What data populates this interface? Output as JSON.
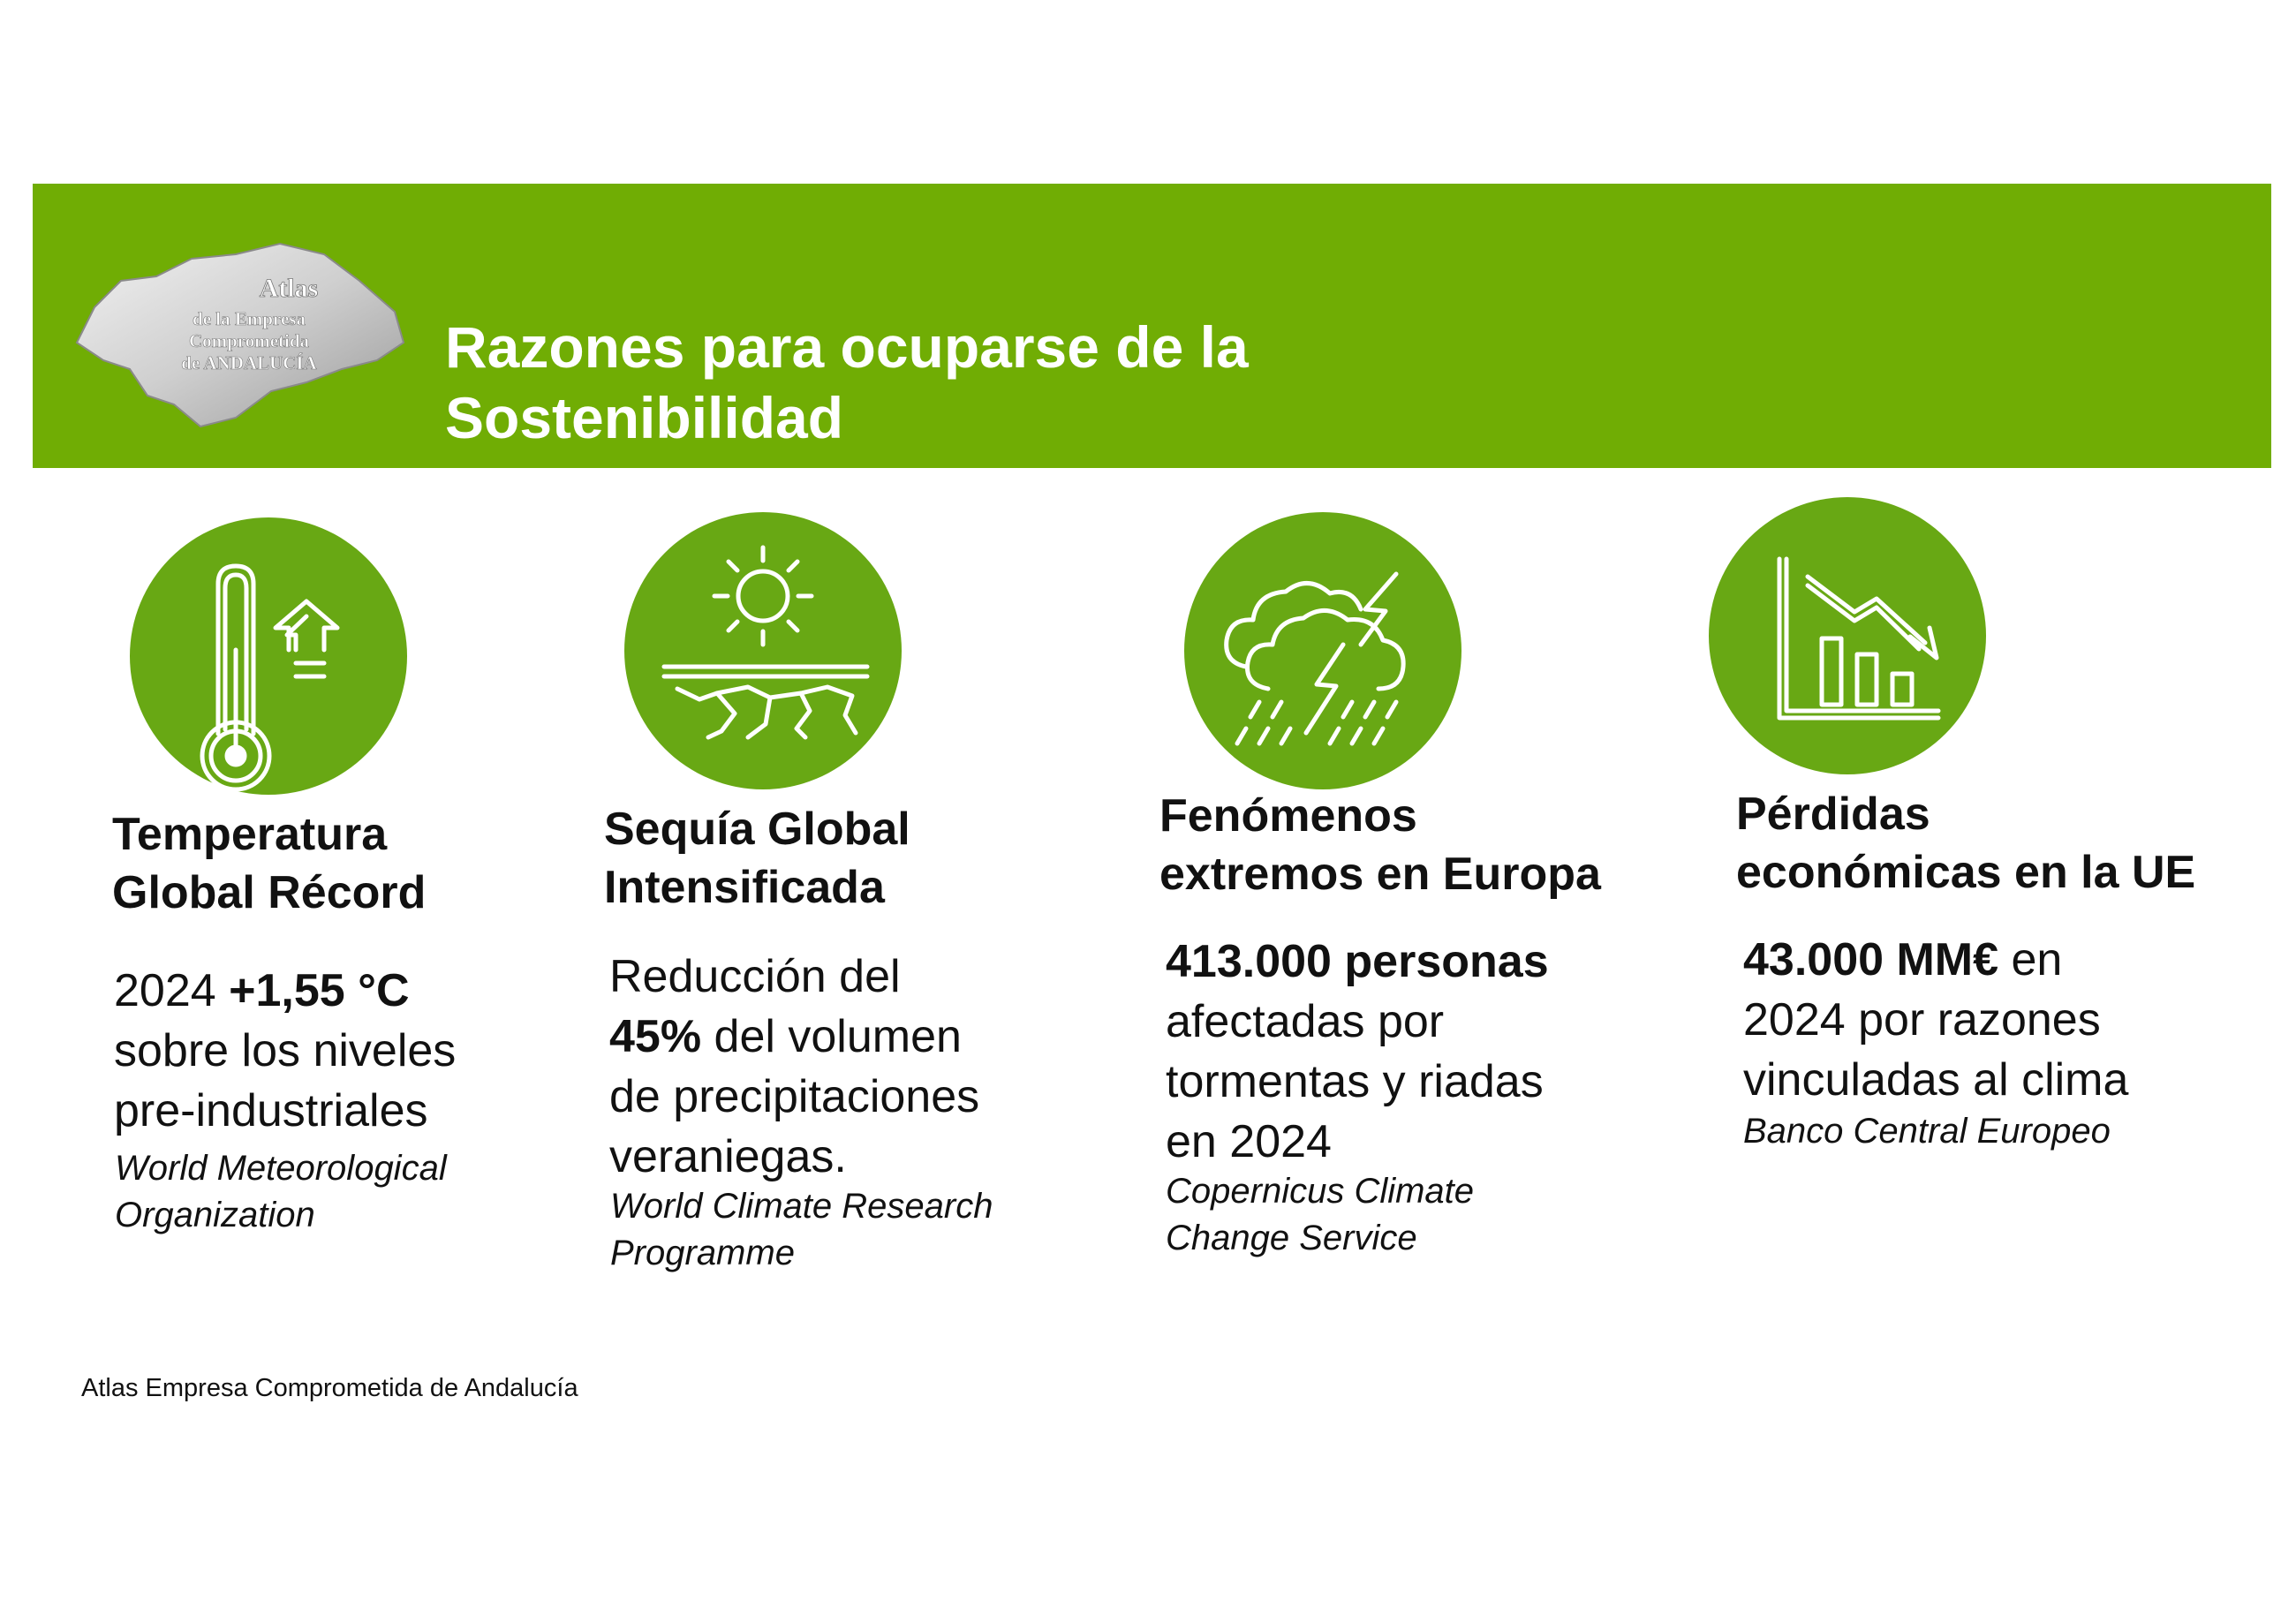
{
  "header": {
    "title_line1": "Razones para ocuparse de la",
    "title_line2": "Sostenibilidad",
    "logo": {
      "name": "andalucia-map-logo",
      "line1": "Atlas",
      "line2": "de la Empresa",
      "line3": "Comprometida",
      "line4": "de ANDALUCÍA"
    }
  },
  "colors": {
    "accent": "#70ad04",
    "circle": "#68a814",
    "text": "#111111"
  },
  "columns": [
    {
      "icon": "thermometer-rising-icon",
      "title_line1": "Temperatura",
      "title_line2": "Global Récord",
      "body": {
        "pre": "2024 ",
        "bold": "+1,55 °C",
        "line2": "sobre los niveles",
        "line3": "pre-industriales"
      },
      "source_line1": "World Meteorological",
      "source_line2": "Organization"
    },
    {
      "icon": "drought-sun-cracked-earth-icon",
      "title_line1": "Sequía Global",
      "title_line2": "Intensificada",
      "body": {
        "line1": "Reducción del",
        "bold": "45%",
        "line2_rest": " del volumen",
        "line3": "de precipitaciones",
        "line4": "veraniegas."
      },
      "source_line1": "World Climate Research",
      "source_line2": "Programme"
    },
    {
      "icon": "storm-cloud-lightning-icon",
      "title_line1": "Fenómenos",
      "title_line2": "extremos en Europa",
      "body": {
        "bold": "413.000 personas",
        "line2": "afectadas por",
        "line3": "tormentas y riadas",
        "line4": "en 2024"
      },
      "source_line1": "Copernicus Climate",
      "source_line2": "Change Service"
    },
    {
      "icon": "declining-bar-chart-icon",
      "title_line1": "Pérdidas",
      "title_line2": "económicas en la UE",
      "body": {
        "bold": "43.000 MM€",
        "line1_rest": " en",
        "line2": "2024 por razones",
        "line3": "vinculadas al clima"
      },
      "source_line1": "Banco Central Europeo",
      "source_line2": ""
    }
  ],
  "footer": {
    "text": "Atlas Empresa Comprometida de Andalucía"
  }
}
